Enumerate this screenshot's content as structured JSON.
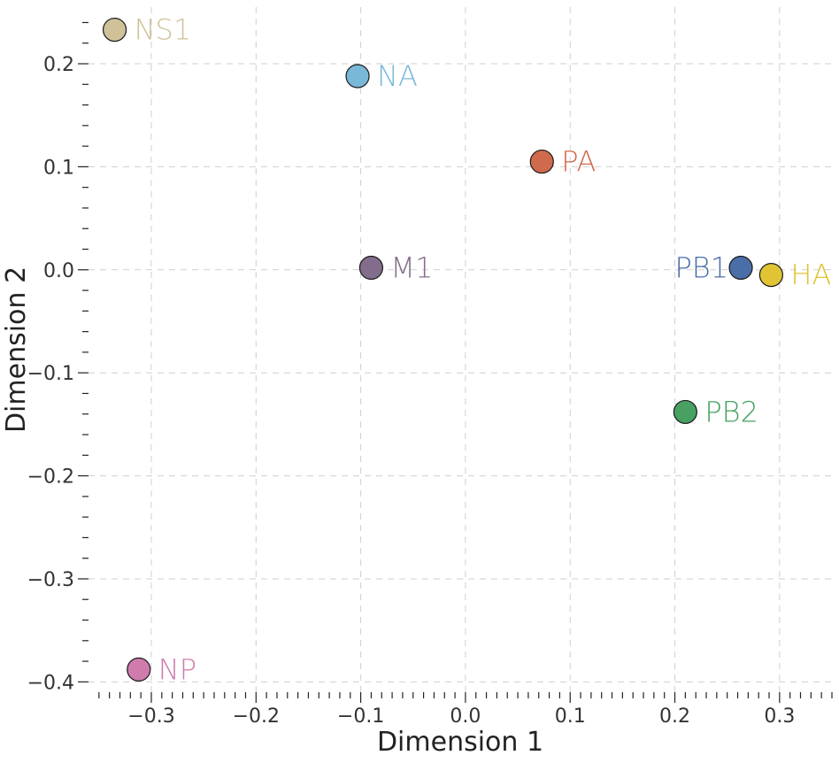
{
  "chart_data": {
    "type": "scatter",
    "title": "",
    "xlabel": "Dimension 1",
    "ylabel": "Dimension 2",
    "xlim": [
      -0.36,
      0.35
    ],
    "ylim": [
      -0.41,
      0.255
    ],
    "grid": true,
    "x_ticks": [
      -0.3,
      -0.2,
      -0.1,
      0.0,
      0.1,
      0.2,
      0.3
    ],
    "x_tick_labels": [
      "−0.3",
      "−0.2",
      "−0.1",
      "0.0",
      "0.1",
      "0.2",
      "0.3"
    ],
    "y_ticks": [
      0.2,
      0.1,
      0.0,
      -0.1,
      -0.2,
      -0.3,
      -0.4
    ],
    "y_tick_labels": [
      "0.2",
      "0.1",
      "0.0",
      "−0.1",
      "−0.2",
      "−0.3",
      "−0.4"
    ],
    "points": [
      {
        "label": "NS1",
        "x": -0.335,
        "y": 0.233,
        "color": "#CFC299",
        "label_side": "right"
      },
      {
        "label": "NA",
        "x": -0.103,
        "y": 0.188,
        "color": "#7AB8D8",
        "label_side": "right"
      },
      {
        "label": "PA",
        "x": 0.073,
        "y": 0.105,
        "color": "#D06A4C",
        "label_side": "right"
      },
      {
        "label": "M1",
        "x": -0.09,
        "y": 0.002,
        "color": "#826E8C",
        "label_side": "right"
      },
      {
        "label": "PB1",
        "x": 0.263,
        "y": 0.002,
        "color": "#4A6EA8",
        "label_side": "left"
      },
      {
        "label": "HA",
        "x": 0.292,
        "y": -0.005,
        "color": "#E0C434",
        "label_side": "right"
      },
      {
        "label": "PB2",
        "x": 0.21,
        "y": -0.138,
        "color": "#48A062",
        "label_side": "right"
      },
      {
        "label": "NP",
        "x": -0.312,
        "y": -0.388,
        "color": "#CF7CAC",
        "label_side": "right"
      }
    ]
  }
}
